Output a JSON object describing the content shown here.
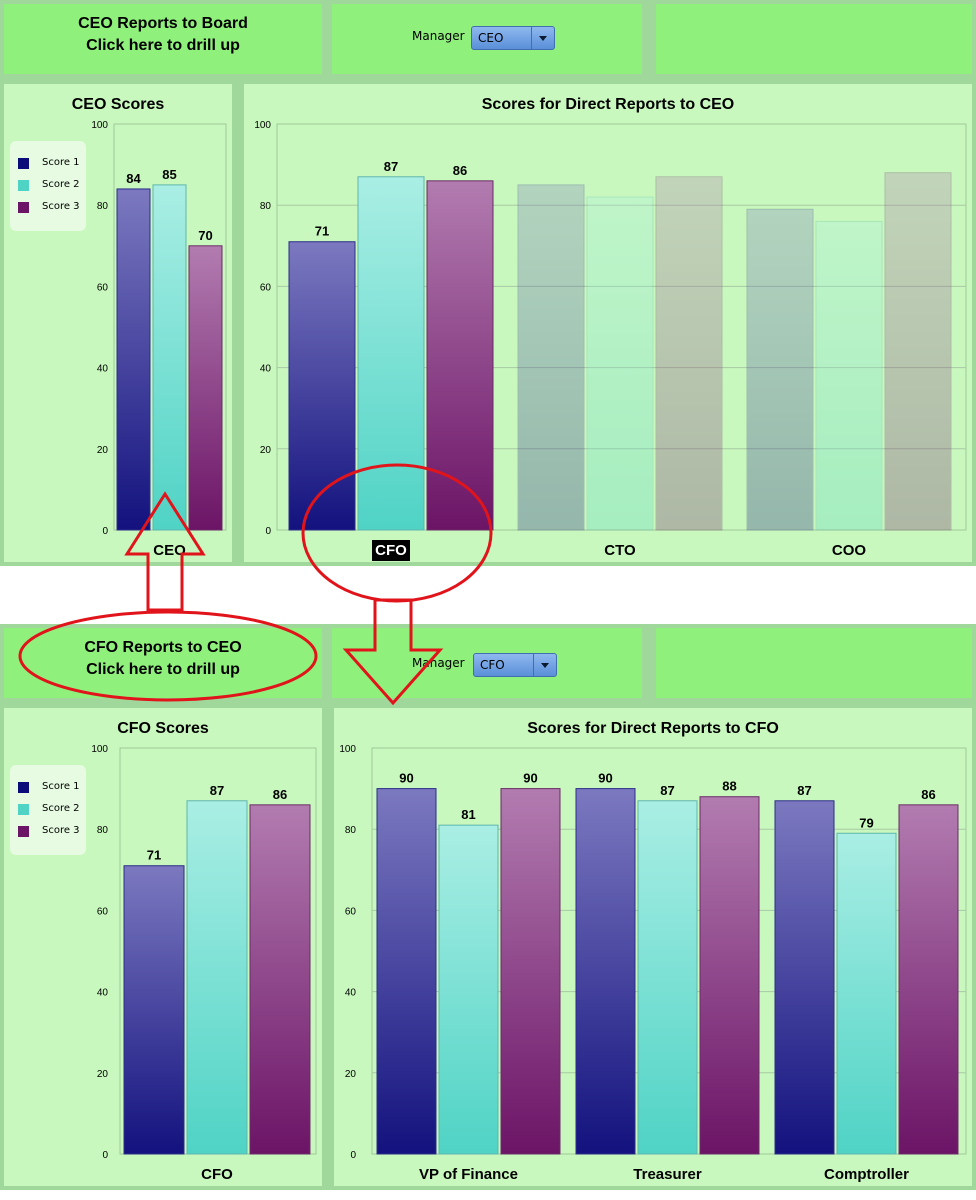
{
  "colors": {
    "score1": "#1a1a8e",
    "score2": "#5fd8cc",
    "score3": "#7a1f74",
    "annotation": "#e0141a"
  },
  "top": {
    "drill_line1": "CEO Reports to Board",
    "drill_line2": "Click here to drill up",
    "manager_label": "Manager",
    "manager_value": "CEO",
    "left_title": "CEO Scores",
    "right_title": "Scores for Direct Reports to CEO"
  },
  "bottom": {
    "drill_line1": "CFO Reports to CEO",
    "drill_line2": "Click here to drill up",
    "manager_label": "Manager",
    "manager_value": "CFO",
    "left_title": "CFO Scores",
    "right_title": "Scores for Direct Reports to CFO"
  },
  "legend": [
    "Score 1",
    "Score 2",
    "Score 3"
  ],
  "chart_data": [
    {
      "type": "bar",
      "title": "CEO Scores",
      "categories": [
        "CEO"
      ],
      "series": [
        {
          "name": "Score 1",
          "values": [
            84
          ]
        },
        {
          "name": "Score 2",
          "values": [
            85
          ]
        },
        {
          "name": "Score 3",
          "values": [
            70
          ]
        }
      ],
      "ylim": [
        0,
        100
      ],
      "yticks": [
        0,
        20,
        40,
        60,
        80,
        100
      ],
      "legend": "left",
      "grid": false
    },
    {
      "type": "bar",
      "title": "Scores for Direct Reports to CEO",
      "categories": [
        "CFO",
        "CTO",
        "COO"
      ],
      "series": [
        {
          "name": "Score 1",
          "values": [
            71,
            85,
            79
          ]
        },
        {
          "name": "Score 2",
          "values": [
            87,
            82,
            76
          ]
        },
        {
          "name": "Score 3",
          "values": [
            86,
            87,
            88
          ]
        }
      ],
      "shown_labels": [
        true,
        false,
        false
      ],
      "highlighted_category": "CFO",
      "ylim": [
        0,
        100
      ],
      "yticks": [
        0,
        20,
        40,
        60,
        80,
        100
      ],
      "grid": true
    },
    {
      "type": "bar",
      "title": "CFO Scores",
      "categories": [
        "CFO"
      ],
      "series": [
        {
          "name": "Score 1",
          "values": [
            71
          ]
        },
        {
          "name": "Score 2",
          "values": [
            87
          ]
        },
        {
          "name": "Score 3",
          "values": [
            86
          ]
        }
      ],
      "ylim": [
        0,
        100
      ],
      "yticks": [
        0,
        20,
        40,
        60,
        80,
        100
      ],
      "legend": "left",
      "grid": false
    },
    {
      "type": "bar",
      "title": "Scores for Direct Reports to CFO",
      "categories": [
        "VP of Finance",
        "Treasurer",
        "Comptroller"
      ],
      "series": [
        {
          "name": "Score 1",
          "values": [
            90,
            90,
            87
          ]
        },
        {
          "name": "Score 2",
          "values": [
            81,
            87,
            79
          ]
        },
        {
          "name": "Score 3",
          "values": [
            90,
            88,
            86
          ]
        }
      ],
      "ylim": [
        0,
        100
      ],
      "yticks": [
        0,
        20,
        40,
        60,
        80,
        100
      ],
      "grid": true
    }
  ]
}
